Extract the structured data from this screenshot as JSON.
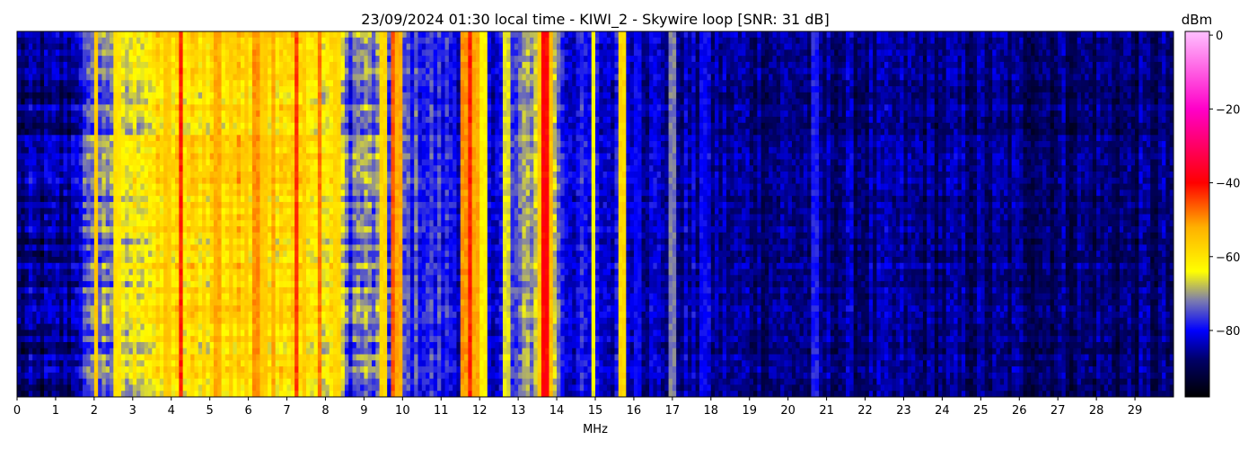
{
  "chart_data": {
    "type": "heatmap",
    "title": "23/09/2024 01:30 local time - KIWI_2 - Skywire loop [SNR: 31 dB]",
    "xlabel": "MHz",
    "xlim": [
      0,
      30
    ],
    "x_ticks": [
      "0",
      "1",
      "2",
      "3",
      "4",
      "5",
      "6",
      "7",
      "8",
      "9",
      "10",
      "11",
      "12",
      "13",
      "14",
      "15",
      "16",
      "17",
      "18",
      "19",
      "20",
      "21",
      "22",
      "23",
      "24",
      "25",
      "26",
      "27",
      "28",
      "29"
    ],
    "colorbar": {
      "label": "dBm",
      "range": [
        -98,
        1
      ],
      "ticks": [
        "0",
        "−20",
        "−40",
        "−60",
        "−80"
      ],
      "tick_values": [
        0,
        -20,
        -40,
        -60,
        -80
      ],
      "colormap": [
        {
          "value": -98,
          "color": "#000000"
        },
        {
          "value": -88,
          "color": "#000066"
        },
        {
          "value": -80,
          "color": "#0000ff"
        },
        {
          "value": -72,
          "color": "#7a7ab0"
        },
        {
          "value": -64,
          "color": "#ffff00"
        },
        {
          "value": -52,
          "color": "#ffb000"
        },
        {
          "value": -40,
          "color": "#ff0000"
        },
        {
          "value": -20,
          "color": "#ff00c8"
        },
        {
          "value": 1,
          "color": "#ffc0ff"
        }
      ]
    },
    "spectrum_profile": {
      "x_mhz": [
        0,
        1.4,
        1.6,
        2.5,
        3.3,
        4.5,
        5.8,
        7.3,
        8.3,
        8.6,
        8.9,
        10.2,
        11.5,
        12.1,
        12.2,
        12.6,
        12.9,
        13.4,
        13.9,
        14.2,
        15.2,
        16,
        18.5,
        30
      ],
      "level_dbm": [
        -88,
        -86,
        -80,
        -70,
        -62,
        -60,
        -58,
        -60,
        -64,
        -76,
        -72,
        -76,
        -80,
        -74,
        -80,
        -80,
        -77,
        -68,
        -66,
        -80,
        -82,
        -83,
        -86,
        -88
      ]
    },
    "carriers": [
      {
        "mhz": 2.05,
        "level_dbm": -56
      },
      {
        "mhz": 2.6,
        "level_dbm": -60
      },
      {
        "mhz": 3.9,
        "level_dbm": -56
      },
      {
        "mhz": 4.25,
        "level_dbm": -42
      },
      {
        "mhz": 4.85,
        "level_dbm": -58
      },
      {
        "mhz": 5.2,
        "level_dbm": -52
      },
      {
        "mhz": 5.55,
        "level_dbm": -56
      },
      {
        "mhz": 5.95,
        "level_dbm": -56
      },
      {
        "mhz": 6.2,
        "level_dbm": -50
      },
      {
        "mhz": 6.4,
        "level_dbm": -56
      },
      {
        "mhz": 6.65,
        "level_dbm": -52
      },
      {
        "mhz": 7.25,
        "level_dbm": -44
      },
      {
        "mhz": 7.45,
        "level_dbm": -56
      },
      {
        "mhz": 7.85,
        "level_dbm": -48
      },
      {
        "mhz": 8.3,
        "level_dbm": -58
      },
      {
        "mhz": 9.5,
        "level_dbm": -58
      },
      {
        "mhz": 9.75,
        "level_dbm": -46
      },
      {
        "mhz": 9.9,
        "level_dbm": -52
      },
      {
        "mhz": 11.6,
        "level_dbm": -50
      },
      {
        "mhz": 11.75,
        "level_dbm": -42
      },
      {
        "mhz": 11.9,
        "level_dbm": -52
      },
      {
        "mhz": 12.1,
        "level_dbm": -62
      },
      {
        "mhz": 12.7,
        "level_dbm": -66
      },
      {
        "mhz": 13.55,
        "level_dbm": -56
      },
      {
        "mhz": 13.7,
        "level_dbm": -40
      },
      {
        "mhz": 13.85,
        "level_dbm": -54
      },
      {
        "mhz": 14.95,
        "level_dbm": -64
      },
      {
        "mhz": 15.7,
        "level_dbm": -58
      },
      {
        "mhz": 16.1,
        "level_dbm": -80
      },
      {
        "mhz": 17.0,
        "level_dbm": -72
      },
      {
        "mhz": 17.8,
        "level_dbm": -80
      },
      {
        "mhz": 20.7,
        "level_dbm": -78
      }
    ]
  }
}
